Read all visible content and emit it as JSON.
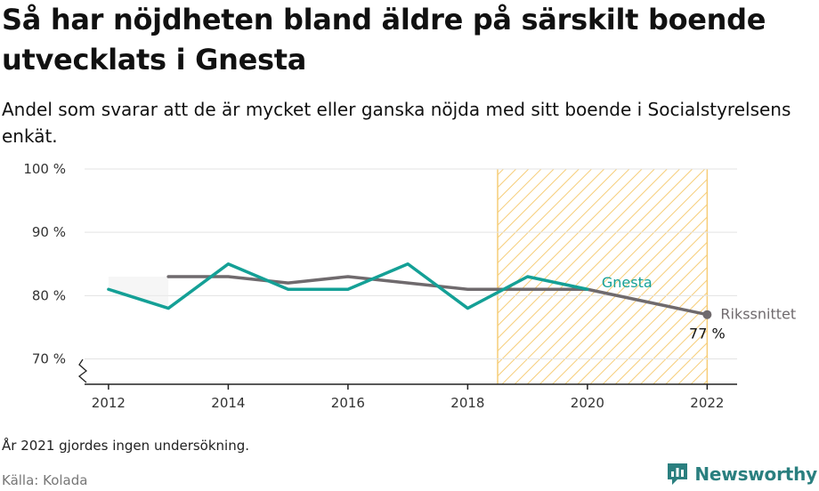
{
  "title": "Så har nöjdheten bland äldre på särskilt boende utvecklats i Gnesta",
  "subtitle": "Andel som svarar att de är mycket eller ganska nöjda med sitt boende i Socialstyrelsens enkät.",
  "note": "År 2021 gjordes ingen undersökning.",
  "source": "Källa: Kolada",
  "brand": "Newsworthy",
  "chart_data": {
    "type": "line",
    "xlim": [
      2011.6,
      2022.5
    ],
    "ylim": [
      66,
      100
    ],
    "x_ticks": [
      2012,
      2014,
      2016,
      2018,
      2020,
      2022
    ],
    "x_tick_labels": [
      "2012",
      "2014",
      "2016",
      "2018",
      "2020",
      "2022"
    ],
    "y_ticks": [
      70,
      80,
      90,
      100
    ],
    "y_tick_labels": [
      "70 %",
      "80 %",
      "90 %",
      "100 %"
    ],
    "grid": true,
    "highlight_range": [
      2018.5,
      2022
    ],
    "series": [
      {
        "name": "Gnesta",
        "color": "#14a096",
        "x": [
          2012,
          2013,
          2014,
          2015,
          2016,
          2017,
          2018,
          2019,
          2020
        ],
        "y": [
          81,
          78,
          85,
          81,
          81,
          85,
          78,
          83,
          81
        ]
      },
      {
        "name": "Rikssnittet",
        "color": "#6f6a6d",
        "x": [
          2013,
          2014,
          2015,
          2016,
          2017,
          2018,
          2019,
          2020,
          2022
        ],
        "y": [
          83,
          83,
          82,
          83,
          82,
          81,
          81,
          81,
          77
        ]
      }
    ],
    "end_label": "77 %"
  }
}
